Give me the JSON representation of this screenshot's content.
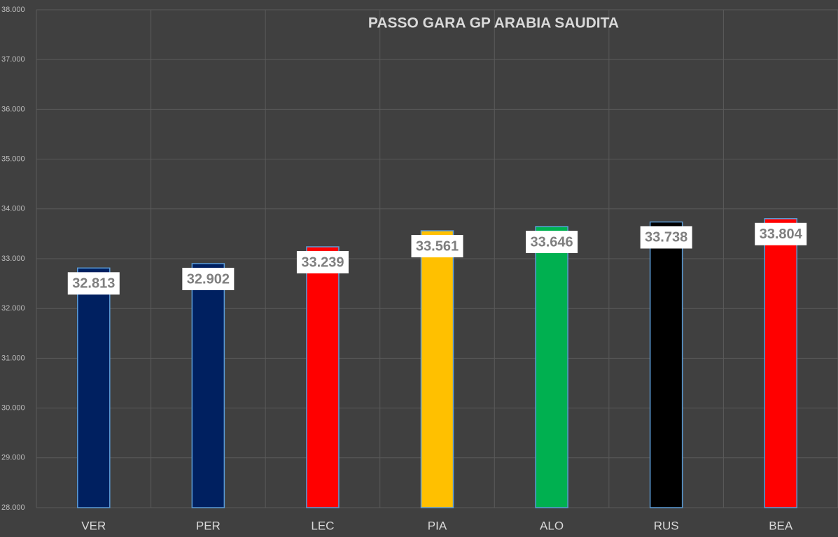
{
  "chart_data": {
    "type": "bar",
    "title": "PASSO GARA GP ARABIA SAUDITA",
    "categories": [
      "VER",
      "PER",
      "LEC",
      "PIA",
      "ALO",
      "RUS",
      "BEA"
    ],
    "values": [
      32.813,
      32.902,
      33.239,
      33.561,
      33.646,
      33.738,
      33.804
    ],
    "colors": [
      "#002060",
      "#002060",
      "#ff0000",
      "#ffc000",
      "#00b050",
      "#000000",
      "#ff0000"
    ],
    "ylim": [
      28,
      38
    ],
    "yticks": [
      {
        "value": 28,
        "label": "28.000"
      },
      {
        "value": 29,
        "label": "29.000"
      },
      {
        "value": 30,
        "label": "30.000"
      },
      {
        "value": 31,
        "label": "31.000"
      },
      {
        "value": 32,
        "label": "32.000"
      },
      {
        "value": 33,
        "label": "33.000"
      },
      {
        "value": 34,
        "label": "34.000"
      },
      {
        "value": 35,
        "label": "35.000"
      },
      {
        "value": 36,
        "label": "36.000"
      },
      {
        "value": 37,
        "label": "37.000"
      },
      {
        "value": 38,
        "label": "38.000"
      }
    ],
    "grid": true
  }
}
